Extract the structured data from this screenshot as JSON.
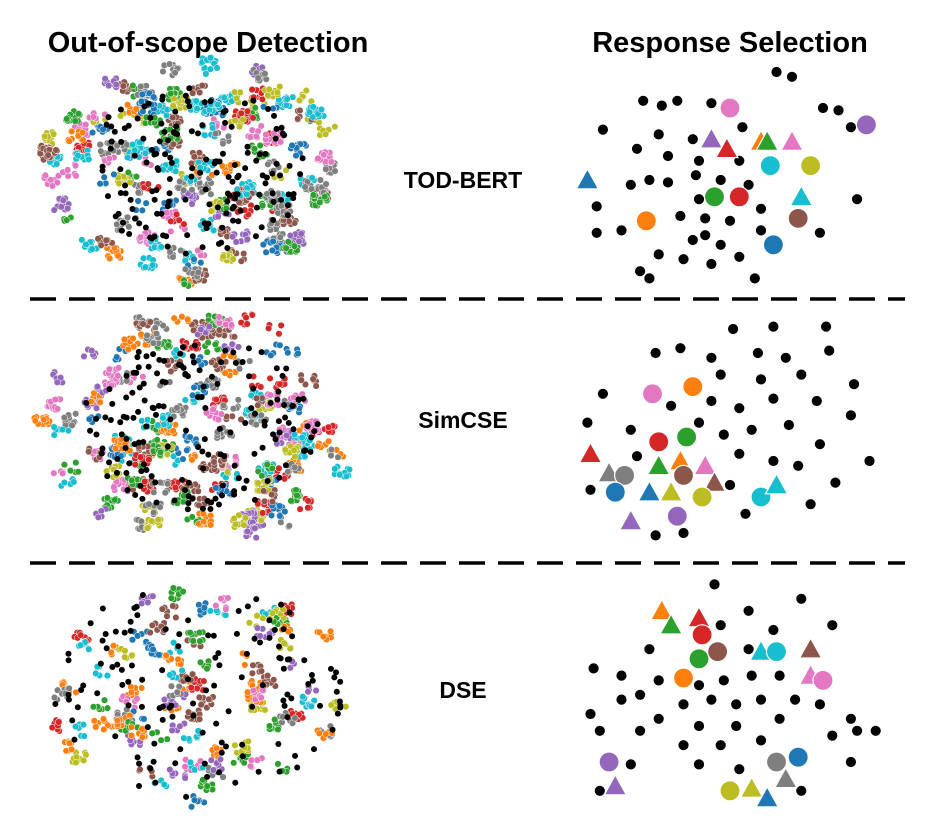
{
  "chart_data": {
    "type": "scatter",
    "column_titles": [
      "Out-of-scope Detection",
      "Response Selection"
    ],
    "row_labels": [
      "TOD-BERT",
      "SimCSE",
      "DSE"
    ],
    "palette": {
      "pink": "#e377c2",
      "purple": "#9467bd",
      "red": "#d62728",
      "orange": "#ff7f0e",
      "green": "#2ca02c",
      "cyan": "#17becf",
      "yellow": "#bcbd22",
      "blue": "#1f77b4",
      "brown": "#8c564b",
      "gray": "#7f7f7f",
      "black": "#000000"
    },
    "xlim": [
      0,
      100
    ],
    "ylim": [
      0,
      100
    ],
    "grid": false,
    "axes_visible": false,
    "out_of_scope_panels": [
      {
        "row": "TOD-BERT",
        "description_style": "dense multi-color clusters with black out-of-scope points"
      },
      {
        "row": "SimCSE",
        "description_style": "dense multi-color clusters with black out-of-scope points"
      },
      {
        "row": "DSE",
        "description_style": "dense multi-color clusters with black out-of-scope points"
      }
    ],
    "response_selection_panels": [
      {
        "row": "TOD-BERT",
        "colored": [
          [
            "circle",
            "pink",
            50,
            80
          ],
          [
            "circle",
            "purple",
            94,
            73
          ],
          [
            "triangle",
            "purple",
            44,
            67
          ],
          [
            "triangle",
            "red",
            49,
            63
          ],
          [
            "triangle",
            "orange",
            60,
            66
          ],
          [
            "triangle",
            "green",
            62,
            66
          ],
          [
            "triangle",
            "pink",
            70,
            66
          ],
          [
            "circle",
            "cyan",
            63,
            56
          ],
          [
            "circle",
            "yellow",
            76,
            56
          ],
          [
            "triangle",
            "blue",
            4,
            50
          ],
          [
            "triangle",
            "cyan",
            73,
            43
          ],
          [
            "circle",
            "green",
            45,
            43
          ],
          [
            "circle",
            "red",
            53,
            43
          ],
          [
            "circle",
            "orange",
            23,
            33
          ],
          [
            "circle",
            "brown",
            72,
            34
          ],
          [
            "circle",
            "blue",
            64,
            23
          ]
        ],
        "black": [
          [
            65,
            95
          ],
          [
            70,
            93
          ],
          [
            22,
            83
          ],
          [
            28,
            81
          ],
          [
            33,
            83
          ],
          [
            44,
            82
          ],
          [
            80,
            80
          ],
          [
            85,
            79
          ],
          [
            9,
            71
          ],
          [
            27,
            69
          ],
          [
            38,
            67
          ],
          [
            54,
            72
          ],
          [
            89,
            72
          ],
          [
            20,
            63
          ],
          [
            30,
            60
          ],
          [
            40,
            58
          ],
          [
            53,
            58
          ],
          [
            18,
            48
          ],
          [
            24,
            50
          ],
          [
            30,
            49
          ],
          [
            39,
            52
          ],
          [
            47,
            50
          ],
          [
            56,
            48
          ],
          [
            40,
            42
          ],
          [
            7,
            39
          ],
          [
            91,
            42
          ],
          [
            34,
            35
          ],
          [
            42,
            34
          ],
          [
            50,
            33
          ],
          [
            60,
            38
          ],
          [
            15,
            29
          ],
          [
            7,
            28
          ],
          [
            38,
            25
          ],
          [
            42,
            27
          ],
          [
            47,
            23
          ],
          [
            60,
            29
          ],
          [
            79,
            28
          ],
          [
            27,
            19
          ],
          [
            35,
            17
          ],
          [
            44,
            15
          ],
          [
            53,
            18
          ],
          [
            21,
            12
          ],
          [
            24,
            9
          ],
          [
            58,
            9
          ]
        ]
      },
      {
        "row": "SimCSE",
        "colored": [
          [
            "circle",
            "pink",
            25,
            63
          ],
          [
            "circle",
            "orange",
            38,
            66
          ],
          [
            "circle",
            "red",
            27,
            43
          ],
          [
            "circle",
            "green",
            36,
            45
          ],
          [
            "triangle",
            "red",
            5,
            38
          ],
          [
            "triangle",
            "green",
            27,
            33
          ],
          [
            "triangle",
            "orange",
            34,
            35
          ],
          [
            "triangle",
            "pink",
            42,
            33
          ],
          [
            "triangle",
            "gray",
            11,
            30
          ],
          [
            "circle",
            "gray",
            16,
            29
          ],
          [
            "circle",
            "brown",
            35,
            29
          ],
          [
            "triangle",
            "brown",
            45,
            26
          ],
          [
            "circle",
            "blue",
            13,
            22
          ],
          [
            "triangle",
            "blue",
            24,
            22
          ],
          [
            "triangle",
            "yellow",
            31,
            22
          ],
          [
            "circle",
            "yellow",
            41,
            20
          ],
          [
            "circle",
            "cyan",
            60,
            20
          ],
          [
            "triangle",
            "cyan",
            65,
            25
          ],
          [
            "triangle",
            "purple",
            18,
            10
          ],
          [
            "circle",
            "purple",
            33,
            12
          ]
        ],
        "black": [
          [
            64,
            91
          ],
          [
            81,
            91
          ],
          [
            51,
            90
          ],
          [
            26,
            80
          ],
          [
            34,
            82
          ],
          [
            44,
            78
          ],
          [
            59,
            80
          ],
          [
            68,
            78
          ],
          [
            82,
            81
          ],
          [
            9,
            63
          ],
          [
            47,
            71
          ],
          [
            60,
            69
          ],
          [
            73,
            71
          ],
          [
            90,
            67
          ],
          [
            31,
            58
          ],
          [
            44,
            60
          ],
          [
            53,
            57
          ],
          [
            64,
            61
          ],
          [
            78,
            60
          ],
          [
            4,
            51
          ],
          [
            18,
            48
          ],
          [
            40,
            51
          ],
          [
            48,
            46
          ],
          [
            57,
            48
          ],
          [
            69,
            50
          ],
          [
            89,
            54
          ],
          [
            79,
            42
          ],
          [
            20,
            37
          ],
          [
            53,
            38
          ],
          [
            64,
            35
          ],
          [
            72,
            33
          ],
          [
            95,
            35
          ],
          [
            5,
            23
          ],
          [
            50,
            25
          ],
          [
            84,
            26
          ],
          [
            55,
            13
          ],
          [
            76,
            17
          ],
          [
            26,
            4
          ],
          [
            35,
            5
          ]
        ]
      },
      {
        "row": "DSE",
        "colored": [
          [
            "triangle",
            "orange",
            28,
            83
          ],
          [
            "triangle",
            "red",
            40,
            80
          ],
          [
            "triangle",
            "green",
            31,
            77
          ],
          [
            "circle",
            "red",
            41,
            73
          ],
          [
            "circle",
            "green",
            40,
            63
          ],
          [
            "circle",
            "brown",
            46,
            66
          ],
          [
            "triangle",
            "cyan",
            60,
            66
          ],
          [
            "circle",
            "cyan",
            65,
            66
          ],
          [
            "triangle",
            "brown",
            76,
            67
          ],
          [
            "triangle",
            "pink",
            76,
            56
          ],
          [
            "circle",
            "pink",
            80,
            54
          ],
          [
            "circle",
            "orange",
            35,
            55
          ],
          [
            "circle",
            "purple",
            11,
            20
          ],
          [
            "triangle",
            "purple",
            13,
            10
          ],
          [
            "circle",
            "gray",
            65,
            20
          ],
          [
            "circle",
            "blue",
            72,
            22
          ],
          [
            "triangle",
            "gray",
            68,
            13
          ],
          [
            "circle",
            "yellow",
            50,
            8
          ],
          [
            "triangle",
            "yellow",
            57,
            9
          ],
          [
            "triangle",
            "blue",
            62,
            5
          ]
        ],
        "black": [
          [
            45,
            94
          ],
          [
            73,
            88
          ],
          [
            56,
            83
          ],
          [
            47,
            77
          ],
          [
            64,
            75
          ],
          [
            83,
            77
          ],
          [
            24,
            67
          ],
          [
            56,
            67
          ],
          [
            6,
            59
          ],
          [
            15,
            56
          ],
          [
            27,
            54
          ],
          [
            40,
            52
          ],
          [
            48,
            54
          ],
          [
            57,
            56
          ],
          [
            66,
            56
          ],
          [
            15,
            46
          ],
          [
            21,
            48
          ],
          [
            35,
            44
          ],
          [
            44,
            46
          ],
          [
            52,
            44
          ],
          [
            60,
            46
          ],
          [
            71,
            46
          ],
          [
            79,
            44
          ],
          [
            5,
            40
          ],
          [
            27,
            38
          ],
          [
            40,
            35
          ],
          [
            52,
            35
          ],
          [
            66,
            38
          ],
          [
            89,
            38
          ],
          [
            97,
            33
          ],
          [
            8,
            33
          ],
          [
            21,
            33
          ],
          [
            35,
            27
          ],
          [
            47,
            27
          ],
          [
            60,
            29
          ],
          [
            83,
            31
          ],
          [
            91,
            33
          ],
          [
            18,
            19
          ],
          [
            40,
            19
          ],
          [
            53,
            17
          ],
          [
            89,
            20
          ],
          [
            8,
            8
          ],
          [
            73,
            8
          ]
        ]
      }
    ]
  }
}
